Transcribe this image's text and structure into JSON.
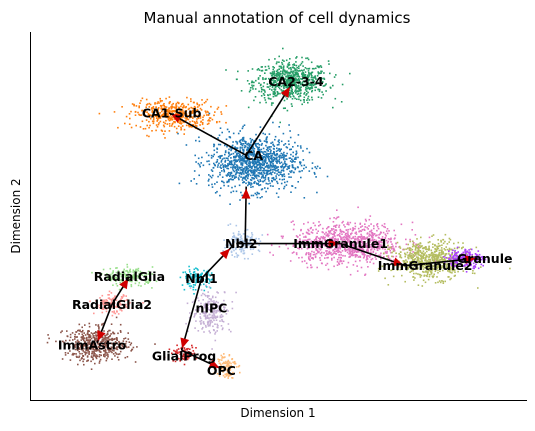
{
  "chart_data": {
    "type": "scatter",
    "title": "Manual annotation of cell dynamics",
    "xlabel": "Dimension 1",
    "ylabel": "Dimension 2",
    "xlim": [
      0,
      100
    ],
    "ylim": [
      0,
      100
    ],
    "grid": false,
    "legend": "none",
    "clusters": [
      {
        "label": "CA2-3-4",
        "color": "#279e68",
        "center": [
          52.5,
          86.5
        ],
        "spread": [
          7.5,
          5.5
        ],
        "n": 700,
        "label_pos": [
          53.5,
          86.5
        ]
      },
      {
        "label": "CA1-Sub",
        "color": "#ff7f0e",
        "center": [
          29.0,
          77.5
        ],
        "spread": [
          8.0,
          4.0
        ],
        "n": 450,
        "label_pos": [
          28.5,
          78.0
        ]
      },
      {
        "label": "CA",
        "color": "#1f77b4",
        "center": [
          45.0,
          64.5
        ],
        "spread": [
          9.0,
          7.5
        ],
        "n": 1100,
        "label_pos": [
          45.0,
          66.5
        ]
      },
      {
        "label": "ImmGranule1",
        "color": "#e377c2",
        "center": [
          64.0,
          42.5
        ],
        "spread": [
          11.0,
          5.5
        ],
        "n": 900,
        "label_pos": [
          62.5,
          42.5
        ]
      },
      {
        "label": "ImmGranule2",
        "color": "#b5bd61",
        "center": [
          80.5,
          38.0
        ],
        "spread": [
          7.5,
          5.0
        ],
        "n": 650,
        "label_pos": [
          79.5,
          36.5
        ]
      },
      {
        "label": "Granule",
        "color": "#aa40fc",
        "center": [
          87.5,
          38.5
        ],
        "spread": [
          3.5,
          2.5
        ],
        "n": 200,
        "label_pos": [
          91.5,
          38.5
        ]
      },
      {
        "label": "Nbl2",
        "color": "#aec7e8",
        "center": [
          42.5,
          42.5
        ],
        "spread": [
          3.5,
          3.5
        ],
        "n": 150,
        "label_pos": [
          42.5,
          42.5
        ]
      },
      {
        "label": "Nbl1",
        "color": "#17becf",
        "center": [
          33.5,
          33.0
        ],
        "spread": [
          3.0,
          2.5
        ],
        "n": 120,
        "label_pos": [
          34.5,
          33.0
        ]
      },
      {
        "label": "nIPC",
        "color": "#c5b0d5",
        "center": [
          36.5,
          24.0
        ],
        "spread": [
          4.0,
          6.0
        ],
        "n": 220,
        "label_pos": [
          36.5,
          25.0
        ]
      },
      {
        "label": "RadialGlia",
        "color": "#98df8a",
        "center": [
          20.0,
          33.5
        ],
        "spread": [
          5.0,
          2.5
        ],
        "n": 170,
        "label_pos": [
          20.0,
          33.5
        ]
      },
      {
        "label": "RadialGlia2",
        "color": "#ff9896",
        "center": [
          16.5,
          26.0
        ],
        "spread": [
          3.5,
          2.5
        ],
        "n": 130,
        "label_pos": [
          16.5,
          26.0
        ]
      },
      {
        "label": "ImmAstro",
        "color": "#8c564b",
        "center": [
          13.5,
          15.0
        ],
        "spread": [
          6.5,
          4.5
        ],
        "n": 500,
        "label_pos": [
          12.5,
          15.0
        ]
      },
      {
        "label": "GlialProg",
        "color": "#d62728",
        "center": [
          31.0,
          12.5
        ],
        "spread": [
          2.5,
          2.0
        ],
        "n": 80,
        "label_pos": [
          31.0,
          12.0
        ]
      },
      {
        "label": "OPC",
        "color": "#ffbb78",
        "center": [
          39.5,
          9.5
        ],
        "spread": [
          2.0,
          3.5
        ],
        "n": 100,
        "label_pos": [
          38.5,
          8.0
        ]
      }
    ],
    "edges": [
      {
        "from": [
          43.5,
          58.0
        ],
        "to": [
          43.3,
          43.0
        ],
        "reverse": true
      },
      {
        "from": [
          43.5,
          66.5
        ],
        "to": [
          52.5,
          85.5
        ]
      },
      {
        "from": [
          43.5,
          66.5
        ],
        "to": [
          28.0,
          78.0
        ]
      },
      {
        "from": [
          41.5,
          42.5
        ],
        "to": [
          62.5,
          42.5
        ]
      },
      {
        "from": [
          62.5,
          42.5
        ],
        "to": [
          75.5,
          36.5
        ]
      },
      {
        "from": [
          75.5,
          36.5
        ],
        "to": [
          90.0,
          38.5
        ]
      },
      {
        "from": [
          40.5,
          41.5
        ],
        "to": [
          34.5,
          33.0
        ],
        "reverse": true
      },
      {
        "from": [
          34.5,
          33.0
        ],
        "to": [
          30.5,
          13.5
        ]
      },
      {
        "from": [
          30.5,
          13.5
        ],
        "to": [
          38.5,
          8.5
        ]
      },
      {
        "from": [
          20.0,
          33.5
        ],
        "to": [
          16.5,
          26.0
        ],
        "reverse": true
      },
      {
        "from": [
          16.5,
          26.0
        ],
        "to": [
          13.5,
          15.5
        ]
      }
    ]
  }
}
